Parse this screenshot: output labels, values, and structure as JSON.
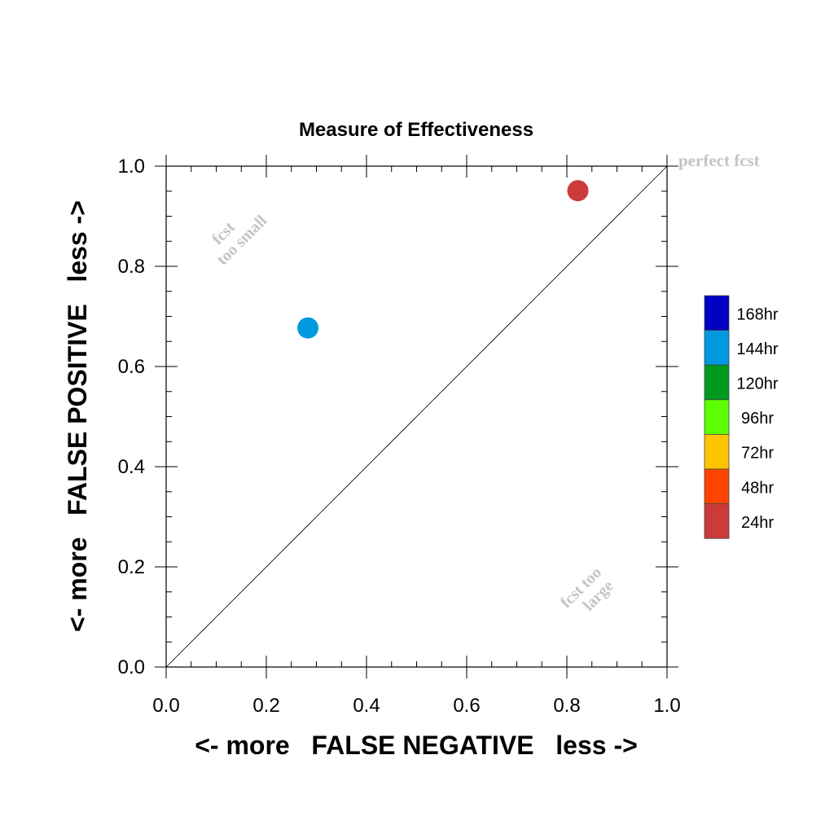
{
  "chart_data": {
    "type": "scatter",
    "title": "Measure of Effectiveness",
    "xlabel": "<- more   FALSE NEGATIVE   less ->",
    "ylabel": "<- more   FALSE POSITIVE   less ->",
    "xlim": [
      0.0,
      1.0
    ],
    "ylim": [
      0.0,
      1.0
    ],
    "x_ticks": [
      0.0,
      0.2,
      0.4,
      0.6,
      0.8,
      1.0
    ],
    "y_ticks": [
      0.0,
      0.2,
      0.4,
      0.6,
      0.8,
      1.0
    ],
    "tick_labels_x": [
      "0.0",
      "0.2",
      "0.4",
      "0.6",
      "0.8",
      "1.0"
    ],
    "tick_labels_y": [
      "0.0",
      "0.2",
      "0.4",
      "0.6",
      "0.8",
      "1.0"
    ],
    "grid": false,
    "reference_line": {
      "from": [
        0.0,
        0.0
      ],
      "to": [
        1.0,
        1.0
      ]
    },
    "annotations": {
      "perfect_fcst": "perfect fcst",
      "fcst_too_small_line1": "fcst",
      "fcst_too_small_line2": "too small",
      "fcst_too_large_line1": "fcst too",
      "fcst_too_large_line2": "large"
    },
    "legend_position": "right",
    "legend": [
      {
        "label": "168hr",
        "color": "#0000c4"
      },
      {
        "label": "144hr",
        "color": "#0099e0"
      },
      {
        "label": "120hr",
        "color": "#009a1e"
      },
      {
        "label": "96hr",
        "color": "#5cff00"
      },
      {
        "label": "72hr",
        "color": "#ffc400"
      },
      {
        "label": "48hr",
        "color": "#ff4400"
      },
      {
        "label": "24hr",
        "color": "#cd3a3a"
      }
    ],
    "points": [
      {
        "lead": "144hr",
        "x": 0.283,
        "y": 0.677,
        "color": "#0099e0"
      },
      {
        "lead": "24hr",
        "x": 0.822,
        "y": 0.951,
        "color": "#cd3a3a"
      }
    ]
  }
}
